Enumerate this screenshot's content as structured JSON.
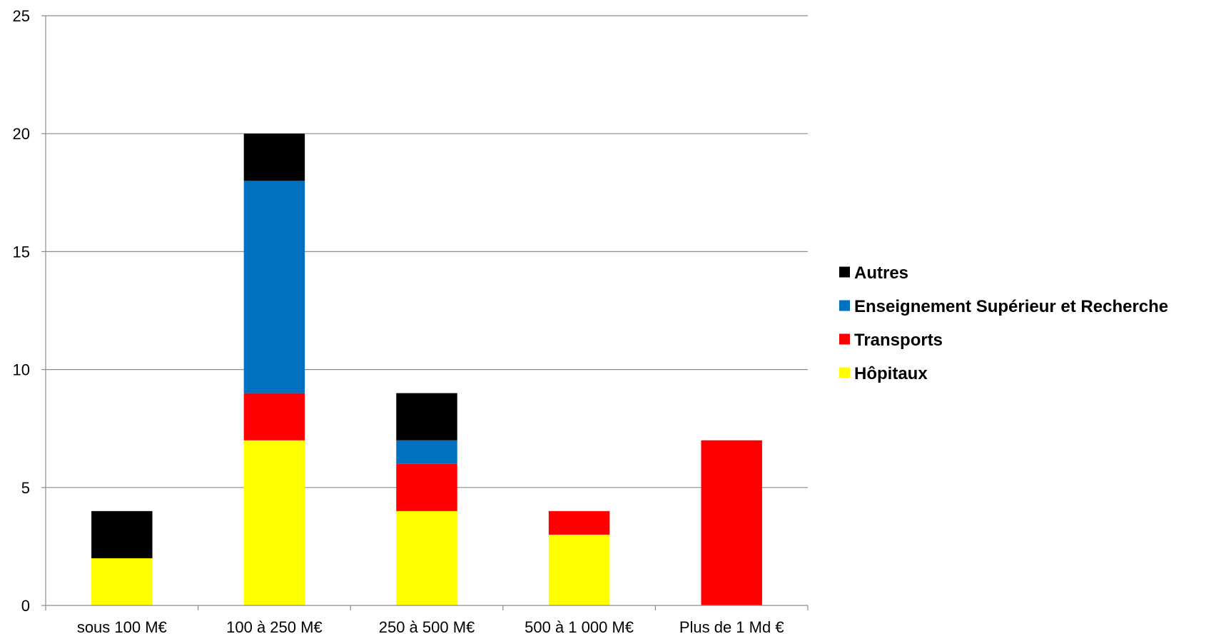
{
  "chart_data": {
    "type": "bar",
    "stacked": true,
    "categories": [
      "sous 100 M€",
      "100 à 250 M€",
      "250 à 500 M€",
      "500 à 1 000 M€",
      "Plus de  1 Md €"
    ],
    "series": [
      {
        "name": "Hôpitaux",
        "values": [
          2,
          7,
          4,
          3,
          0
        ],
        "color": "#FFFF00"
      },
      {
        "name": "Transports",
        "values": [
          0,
          2,
          2,
          1,
          7
        ],
        "color": "#FF0000"
      },
      {
        "name": "Enseignement Supérieur et Recherche",
        "values": [
          0,
          9,
          1,
          0,
          0
        ],
        "color": "#0070C0"
      },
      {
        "name": "Autres",
        "values": [
          2,
          2,
          2,
          0,
          0
        ],
        "color": "#000000"
      }
    ],
    "title": "",
    "xlabel": "",
    "ylabel": "",
    "ylim": [
      0,
      25
    ],
    "yticks": [
      0,
      5,
      10,
      15,
      20,
      25
    ],
    "grid": true,
    "legend_position": "right",
    "legend_order": [
      "Autres",
      "Enseignement Supérieur et Recherche",
      "Transports",
      "Hôpitaux"
    ]
  }
}
